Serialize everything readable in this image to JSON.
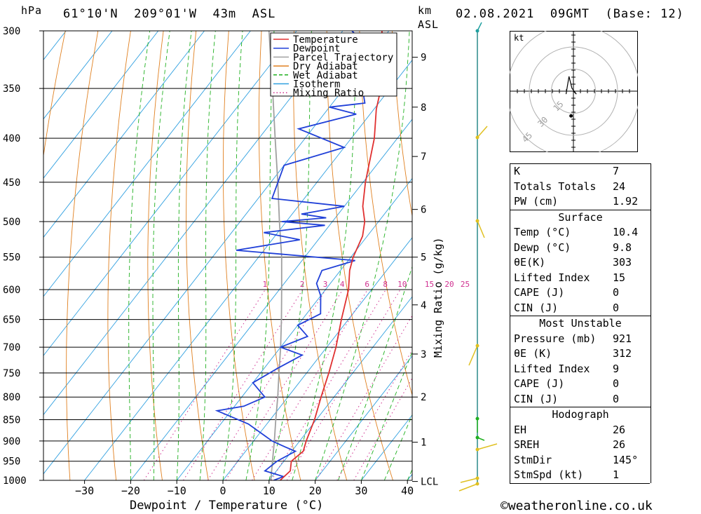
{
  "header": {
    "pressure_unit": "hPa",
    "location": "61°10'N  209°01'W  43m  ASL",
    "height_unit": "km",
    "height_unit2": "ASL",
    "datetime": "02.08.2021  09GMT  (Base: 12)"
  },
  "chart_data": {
    "type": "line",
    "title": "",
    "xlabel": "Dewpoint / Temperature (°C)",
    "ylabel": "hPa",
    "y2label": "Mixing Ratio (g/kg)",
    "xlim": [
      -40,
      40
    ],
    "ylim": [
      1000,
      300
    ],
    "pressure_ticks": [
      300,
      350,
      400,
      450,
      500,
      550,
      600,
      650,
      700,
      750,
      800,
      850,
      900,
      950,
      1000
    ],
    "temp_ticks": [
      -30,
      -20,
      -10,
      0,
      10,
      20,
      30,
      40
    ],
    "km_ticks": [
      {
        "label": "9",
        "p": 322
      },
      {
        "label": "8",
        "p": 368
      },
      {
        "label": "7",
        "p": 420
      },
      {
        "label": "6",
        "p": 484
      },
      {
        "label": "5",
        "p": 550
      },
      {
        "label": "4",
        "p": 625
      },
      {
        "label": "3",
        "p": 713
      },
      {
        "label": "2",
        "p": 800
      },
      {
        "label": "1",
        "p": 903
      },
      {
        "label": "LCL",
        "p": 1003
      }
    ],
    "mixing_ratio_labels": [
      "1",
      "2",
      "3",
      "4",
      "6",
      "8",
      "10",
      "15",
      "20",
      "25"
    ],
    "legend": {
      "placement": "top-center",
      "entries": [
        {
          "name": "Temperature",
          "color": "#e03030",
          "style": "solid"
        },
        {
          "name": "Dewpoint",
          "color": "#2040d8",
          "style": "solid"
        },
        {
          "name": "Parcel Trajectory",
          "color": "#a0a0a0",
          "style": "solid"
        },
        {
          "name": "Dry Adiabat",
          "color": "#e08020",
          "style": "solid"
        },
        {
          "name": "Wet Adiabat",
          "color": "#20b020",
          "style": "dashed"
        },
        {
          "name": "Isotherm",
          "color": "#30a0e0",
          "style": "solid"
        },
        {
          "name": "Mixing Ratio",
          "color": "#d03090",
          "style": "dotted"
        }
      ]
    },
    "series": [
      {
        "name": "Temperature",
        "color": "#e03030",
        "points": [
          {
            "p": 1000,
            "t": 12.4
          },
          {
            "p": 975,
            "t": 13
          },
          {
            "p": 950,
            "t": 11.6
          },
          {
            "p": 925,
            "t": 12.5
          },
          {
            "p": 900,
            "t": 11.4
          },
          {
            "p": 850,
            "t": 9.6
          },
          {
            "p": 800,
            "t": 7.2
          },
          {
            "p": 750,
            "t": 4.8
          },
          {
            "p": 700,
            "t": 2.0
          },
          {
            "p": 650,
            "t": -1.5
          },
          {
            "p": 600,
            "t": -5.0
          },
          {
            "p": 570,
            "t": -8.0
          },
          {
            "p": 550,
            "t": -9.5
          },
          {
            "p": 520,
            "t": -11.0
          },
          {
            "p": 500,
            "t": -13.0
          },
          {
            "p": 480,
            "t": -16.0
          },
          {
            "p": 450,
            "t": -19.5
          },
          {
            "p": 400,
            "t": -25.0
          },
          {
            "p": 370,
            "t": -29.5
          },
          {
            "p": 350,
            "t": -32.0
          },
          {
            "p": 320,
            "t": -37.5
          },
          {
            "p": 300,
            "t": -41.5
          }
        ]
      },
      {
        "name": "Dewpoint",
        "color": "#2040d8",
        "points": [
          {
            "p": 1000,
            "t": 11
          },
          {
            "p": 990,
            "t": 12.5
          },
          {
            "p": 975,
            "t": 7.5
          },
          {
            "p": 950,
            "t": 8.5
          },
          {
            "p": 925,
            "t": 10.8
          },
          {
            "p": 915,
            "t": 8
          },
          {
            "p": 900,
            "t": 4
          },
          {
            "p": 860,
            "t": -4
          },
          {
            "p": 830,
            "t": -13
          },
          {
            "p": 820,
            "t": -8
          },
          {
            "p": 800,
            "t": -5
          },
          {
            "p": 770,
            "t": -10
          },
          {
            "p": 740,
            "t": -7
          },
          {
            "p": 715,
            "t": -4
          },
          {
            "p": 700,
            "t": -10
          },
          {
            "p": 680,
            "t": -6
          },
          {
            "p": 660,
            "t": -10
          },
          {
            "p": 640,
            "t": -7
          },
          {
            "p": 610,
            "t": -10
          },
          {
            "p": 590,
            "t": -13
          },
          {
            "p": 570,
            "t": -14
          },
          {
            "p": 555,
            "t": -8.5
          },
          {
            "p": 540,
            "t": -36
          },
          {
            "p": 525,
            "t": -24
          },
          {
            "p": 515,
            "t": -33
          },
          {
            "p": 505,
            "t": -21
          },
          {
            "p": 500,
            "t": -31
          },
          {
            "p": 495,
            "t": -22
          },
          {
            "p": 490,
            "t": -28
          },
          {
            "p": 480,
            "t": -20
          },
          {
            "p": 470,
            "t": -37
          },
          {
            "p": 430,
            "t": -40
          },
          {
            "p": 410,
            "t": -30
          },
          {
            "p": 390,
            "t": -43
          },
          {
            "p": 375,
            "t": -33
          },
          {
            "p": 368,
            "t": -40
          },
          {
            "p": 364,
            "t": -33
          },
          {
            "p": 350,
            "t": -36
          },
          {
            "p": 320,
            "t": -39
          },
          {
            "p": 300,
            "t": -48
          }
        ]
      },
      {
        "name": "Parcel Trajectory",
        "color": "#a0a0a0",
        "points": [
          {
            "p": 1000,
            "t": 10.4
          },
          {
            "p": 950,
            "t": 7.5
          },
          {
            "p": 900,
            "t": 4.5
          },
          {
            "p": 850,
            "t": 1.2
          },
          {
            "p": 800,
            "t": -2.2
          },
          {
            "p": 750,
            "t": -6
          },
          {
            "p": 700,
            "t": -10
          },
          {
            "p": 650,
            "t": -14.5
          },
          {
            "p": 600,
            "t": -19.5
          },
          {
            "p": 550,
            "t": -25
          },
          {
            "p": 500,
            "t": -31.5
          },
          {
            "p": 450,
            "t": -38.5
          },
          {
            "p": 400,
            "t": -46.5
          },
          {
            "p": 350,
            "t": -55.5
          },
          {
            "p": 300,
            "t": -66
          }
        ]
      }
    ],
    "hodograph": {
      "unit": "kt",
      "ring_labels": [
        "15",
        "30",
        "45"
      ],
      "points": [
        {
          "u": 0,
          "v": 0
        },
        {
          "u": 2,
          "v": -2
        },
        {
          "u": -1,
          "v": 2
        },
        {
          "u": -3,
          "v": 10
        },
        {
          "u": -5,
          "v": -2
        }
      ],
      "storm_motion_marker": {
        "u": -4,
        "v": -24
      }
    }
  },
  "indices": {
    "rows": [
      {
        "key": "K",
        "val": "7"
      },
      {
        "key": "Totals Totals",
        "val": "24"
      },
      {
        "key": "PW (cm)",
        "val": "1.92"
      }
    ],
    "surface_title": "Surface",
    "surface": [
      {
        "key": "Temp (°C)",
        "val": "10.4"
      },
      {
        "key": "Dewp (°C)",
        "val": "9.8"
      },
      {
        "key": "θE(K)",
        "val": "303"
      },
      {
        "key": "Lifted Index",
        "val": "15"
      },
      {
        "key": "CAPE (J)",
        "val": "0"
      },
      {
        "key": "CIN (J)",
        "val": "0"
      }
    ],
    "mu_title": "Most Unstable",
    "mu": [
      {
        "key": "Pressure (mb)",
        "val": "921"
      },
      {
        "key": "θE (K)",
        "val": "312"
      },
      {
        "key": "Lifted Index",
        "val": "9"
      },
      {
        "key": "CAPE (J)",
        "val": "0"
      },
      {
        "key": "CIN (J)",
        "val": "0"
      }
    ],
    "hodo_title": "Hodograph",
    "hodo": [
      {
        "key": "EH",
        "val": "26"
      },
      {
        "key": "SREH",
        "val": "26"
      },
      {
        "key": "StmDir",
        "val": "145°"
      },
      {
        "key": "StmSpd (kt)",
        "val": "1"
      }
    ]
  },
  "footer": "©weatheronline.co.uk",
  "colors": {
    "temperature": "#e03030",
    "dewpoint": "#2040d8",
    "parcel": "#a0a0a0",
    "dry_adiabat": "#e08020",
    "wet_adiabat": "#20b020",
    "isotherm": "#30a0e0",
    "mixing_ratio": "#d03090",
    "wind_profile": "#e0e020"
  }
}
